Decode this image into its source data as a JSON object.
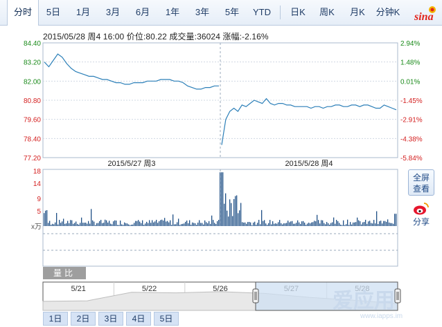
{
  "tabs": [
    {
      "label": "分时",
      "active": true
    },
    {
      "label": "5日"
    },
    {
      "label": "1月"
    },
    {
      "label": "3月"
    },
    {
      "label": "6月"
    },
    {
      "label": "1年"
    },
    {
      "label": "3年"
    },
    {
      "label": "5年"
    },
    {
      "label": "YTD"
    },
    {
      "label": "日K"
    },
    {
      "label": "周K"
    },
    {
      "label": "月K"
    },
    {
      "label": "分钟K"
    }
  ],
  "logo_text": "sina",
  "info": "2015/05/28 周4 16:00  价位:80.22  成交量:36024  涨幅:-2.16%",
  "price_axis": [
    "84.40",
    "83.20",
    "82.00",
    "80.80",
    "79.60",
    "78.40",
    "77.20"
  ],
  "pct_axis": [
    "2.94%",
    "1.48%",
    "0.01%",
    "-1.45%",
    "-2.91%",
    "-4.38%",
    "-5.84%"
  ],
  "date_labels": [
    "2015/5/27 周3",
    "2015/5/28 周4"
  ],
  "vol_axis": [
    "18",
    "14",
    "9",
    "5"
  ],
  "vol_unit": "x万",
  "side_buttons": {
    "fullscreen": "全屏\n查看",
    "share": "分享"
  },
  "vol_tab": "量比",
  "nav_dates": [
    "5/21",
    "5/22",
    "5/26",
    "5/27",
    "5/28"
  ],
  "range_tabs": [
    "1日",
    "2日",
    "3日",
    "4日",
    "5日"
  ],
  "watermark": "爱应用",
  "watermark_url": "www.iapps.im",
  "colors": {
    "line": "#2b7fb8",
    "up": "#1a8a1a",
    "down": "#d42020",
    "volume": "#1f4f86"
  },
  "chart_data": {
    "type": "line",
    "price_range": [
      77.2,
      84.4
    ],
    "day1_prices": [
      83.2,
      82.9,
      83.3,
      83.7,
      83.5,
      83.1,
      82.8,
      82.6,
      82.5,
      82.4,
      82.3,
      82.3,
      82.2,
      82.1,
      82.1,
      82.0,
      81.9,
      81.9,
      81.8,
      81.8,
      81.9,
      81.9,
      81.9,
      82.0,
      82.0,
      82.0,
      82.1,
      82.1,
      82.1,
      82.0,
      82.0,
      81.9,
      81.7,
      81.6,
      81.5,
      81.5,
      81.6,
      81.6,
      81.7,
      81.7
    ],
    "day2_prices": [
      78.0,
      79.6,
      80.1,
      80.3,
      80.1,
      80.5,
      80.4,
      80.6,
      80.8,
      80.7,
      80.6,
      80.9,
      80.6,
      80.5,
      80.6,
      80.6,
      80.5,
      80.5,
      80.4,
      80.4,
      80.4,
      80.4,
      80.3,
      80.4,
      80.4,
      80.3,
      80.4,
      80.4,
      80.5,
      80.5,
      80.4,
      80.4,
      80.5,
      80.5,
      80.4,
      80.5,
      80.5,
      80.4,
      80.3,
      80.3,
      80.5,
      80.4,
      80.3,
      80.2
    ],
    "volume_max": 18,
    "nav_closes": [
      80.6,
      80.7,
      82.2,
      82.1,
      82.3,
      82.0,
      81.3,
      80.8,
      80.2
    ]
  }
}
